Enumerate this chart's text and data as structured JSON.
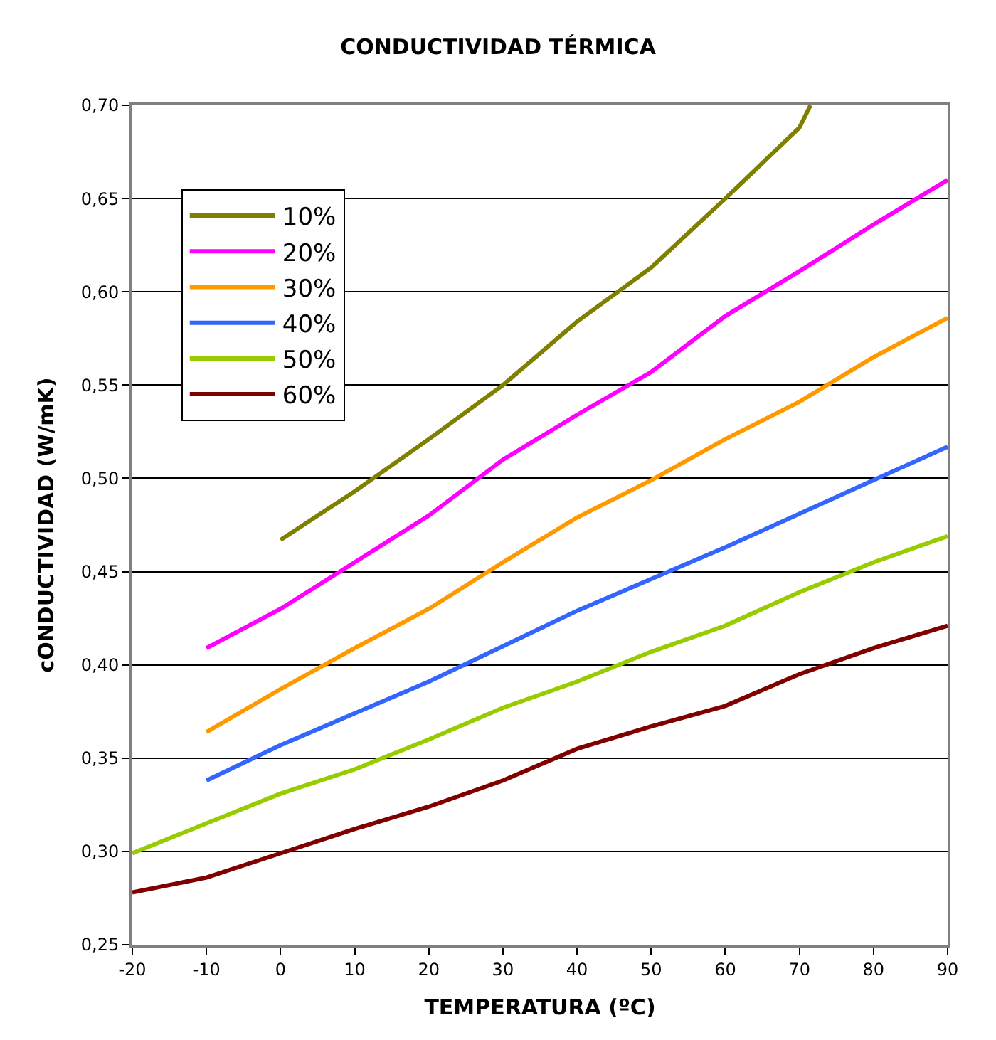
{
  "chart_data": {
    "type": "line",
    "title": "CONDUCTIVIDAD TÉRMICA",
    "xlabel": "TEMPERATURA (ºC)",
    "ylabel": "cONDUCTIVIDAD (W/mK)",
    "series": [
      {
        "name": "10%",
        "color": "#808000",
        "x": [
          0,
          10,
          20,
          30,
          40,
          50,
          60,
          70,
          71.5
        ],
        "values": [
          0.467,
          0.493,
          0.521,
          0.55,
          0.584,
          0.613,
          0.65,
          0.688,
          0.7
        ]
      },
      {
        "name": "20%",
        "color": "#ff00ff",
        "x": [
          -10,
          0,
          10,
          20,
          30,
          40,
          50,
          60,
          70,
          80,
          90
        ],
        "values": [
          0.409,
          0.43,
          0.455,
          0.48,
          0.51,
          0.534,
          0.557,
          0.587,
          0.611,
          0.636,
          0.66
        ]
      },
      {
        "name": "30%",
        "color": "#ff9900",
        "x": [
          -10,
          0,
          10,
          20,
          30,
          40,
          50,
          60,
          70,
          80,
          90
        ],
        "values": [
          0.364,
          0.387,
          0.409,
          0.43,
          0.455,
          0.479,
          0.499,
          0.521,
          0.541,
          0.565,
          0.586
        ]
      },
      {
        "name": "40%",
        "color": "#3366ff",
        "x": [
          -10,
          0,
          10,
          20,
          30,
          40,
          50,
          60,
          70,
          80,
          90
        ],
        "values": [
          0.338,
          0.357,
          0.374,
          0.391,
          0.41,
          0.429,
          0.446,
          0.463,
          0.481,
          0.499,
          0.517
        ]
      },
      {
        "name": "50%",
        "color": "#99cc00",
        "x": [
          -20,
          -10,
          0,
          10,
          20,
          30,
          40,
          50,
          60,
          70,
          80,
          90
        ],
        "values": [
          0.299,
          0.315,
          0.331,
          0.344,
          0.36,
          0.377,
          0.391,
          0.407,
          0.421,
          0.439,
          0.455,
          0.469
        ]
      },
      {
        "name": "60%",
        "color": "#800000",
        "x": [
          -20,
          -10,
          0,
          10,
          20,
          30,
          40,
          50,
          60,
          70,
          80,
          90
        ],
        "values": [
          0.278,
          0.286,
          0.299,
          0.312,
          0.324,
          0.338,
          0.355,
          0.367,
          0.378,
          0.395,
          0.409,
          0.421
        ]
      }
    ],
    "xlim": [
      -20,
      90
    ],
    "xticks": [
      -20,
      -10,
      0,
      10,
      20,
      30,
      40,
      50,
      60,
      70,
      80,
      90
    ],
    "ylim": [
      0.25,
      0.7
    ],
    "yticks": [
      {
        "value": 0.25,
        "label": "0,25"
      },
      {
        "value": 0.3,
        "label": "0,30"
      },
      {
        "value": 0.35,
        "label": "0,35"
      },
      {
        "value": 0.4,
        "label": "0,40"
      },
      {
        "value": 0.45,
        "label": "0,45"
      },
      {
        "value": 0.5,
        "label": "0,50"
      },
      {
        "value": 0.55,
        "label": "0,55"
      },
      {
        "value": 0.6,
        "label": "0,60"
      },
      {
        "value": 0.65,
        "label": "0,65"
      },
      {
        "value": 0.7,
        "label": "0,70"
      }
    ],
    "grid": "y",
    "legend": "top left",
    "marker": "none",
    "line_style": "solid"
  }
}
